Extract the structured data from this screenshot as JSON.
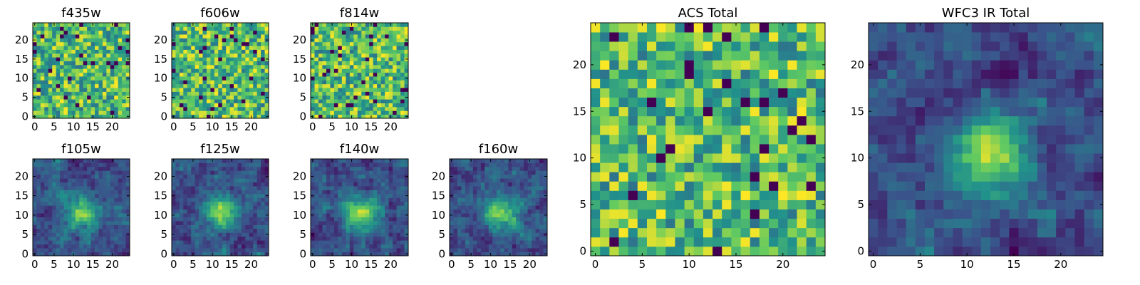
{
  "chart_data": [
    {
      "id": "f435w",
      "type": "heatmap",
      "title": "f435w",
      "pattern": "noise",
      "grid": 25,
      "xticks": [
        "0",
        "5",
        "10",
        "15",
        "20"
      ],
      "yticks": [
        "0",
        "5",
        "10",
        "15",
        "20"
      ],
      "xlim": [
        0,
        25
      ],
      "ylim": [
        0,
        25
      ],
      "seed": 11
    },
    {
      "id": "f606w",
      "type": "heatmap",
      "title": "f606w",
      "pattern": "noise",
      "grid": 25,
      "xticks": [
        "0",
        "5",
        "10",
        "15",
        "20"
      ],
      "yticks": [
        "0",
        "5",
        "10",
        "15",
        "20"
      ],
      "xlim": [
        0,
        25
      ],
      "ylim": [
        0,
        25
      ],
      "seed": 23
    },
    {
      "id": "f814w",
      "type": "heatmap",
      "title": "f814w",
      "pattern": "noise",
      "grid": 25,
      "xticks": [
        "0",
        "5",
        "10",
        "15",
        "20"
      ],
      "yticks": [
        "0",
        "5",
        "10",
        "15",
        "20"
      ],
      "xlim": [
        0,
        25
      ],
      "ylim": [
        0,
        25
      ],
      "seed": 37
    },
    {
      "id": "f105w",
      "type": "heatmap",
      "title": "f105w",
      "pattern": "source",
      "grid": 25,
      "xticks": [
        "0",
        "5",
        "10",
        "15",
        "20"
      ],
      "yticks": [
        "0",
        "5",
        "10",
        "15",
        "20"
      ],
      "xlim": [
        0,
        25
      ],
      "ylim": [
        0,
        25
      ],
      "seed": 41
    },
    {
      "id": "f125w",
      "type": "heatmap",
      "title": "f125w",
      "pattern": "source",
      "grid": 25,
      "xticks": [
        "0",
        "5",
        "10",
        "15",
        "20"
      ],
      "yticks": [
        "0",
        "5",
        "10",
        "15",
        "20"
      ],
      "xlim": [
        0,
        25
      ],
      "ylim": [
        0,
        25
      ],
      "seed": 53
    },
    {
      "id": "f140w",
      "type": "heatmap",
      "title": "f140w",
      "pattern": "source",
      "grid": 25,
      "xticks": [
        "0",
        "5",
        "10",
        "15",
        "20"
      ],
      "yticks": [
        "0",
        "5",
        "10",
        "15",
        "20"
      ],
      "xlim": [
        0,
        25
      ],
      "ylim": [
        0,
        25
      ],
      "seed": 67
    },
    {
      "id": "f160w",
      "type": "heatmap",
      "title": "f160w",
      "pattern": "source",
      "grid": 25,
      "xticks": [
        "0",
        "5",
        "10",
        "15",
        "20"
      ],
      "yticks": [
        "0",
        "5",
        "10",
        "15",
        "20"
      ],
      "xlim": [
        0,
        25
      ],
      "ylim": [
        0,
        25
      ],
      "seed": 79
    },
    {
      "id": "acs_total",
      "type": "heatmap",
      "title": "ACS Total",
      "pattern": "noise",
      "grid": 25,
      "xticks": [
        "0",
        "5",
        "10",
        "15",
        "20"
      ],
      "yticks": [
        "0",
        "5",
        "10",
        "15",
        "20"
      ],
      "xlim": [
        0,
        25
      ],
      "ylim": [
        0,
        25
      ],
      "seed": 97
    },
    {
      "id": "wfc3_total",
      "type": "heatmap",
      "title": "WFC3 IR Total",
      "pattern": "source",
      "grid": 25,
      "xticks": [
        "0",
        "5",
        "10",
        "15",
        "20"
      ],
      "yticks": [
        "0",
        "5",
        "10",
        "15",
        "20"
      ],
      "xlim": [
        0,
        25
      ],
      "ylim": [
        0,
        25
      ],
      "seed": 101
    }
  ],
  "colors": {
    "colormap": [
      "#440154",
      "#3b528b",
      "#21918c",
      "#5ec962",
      "#fde725"
    ],
    "axis": "#000000"
  }
}
